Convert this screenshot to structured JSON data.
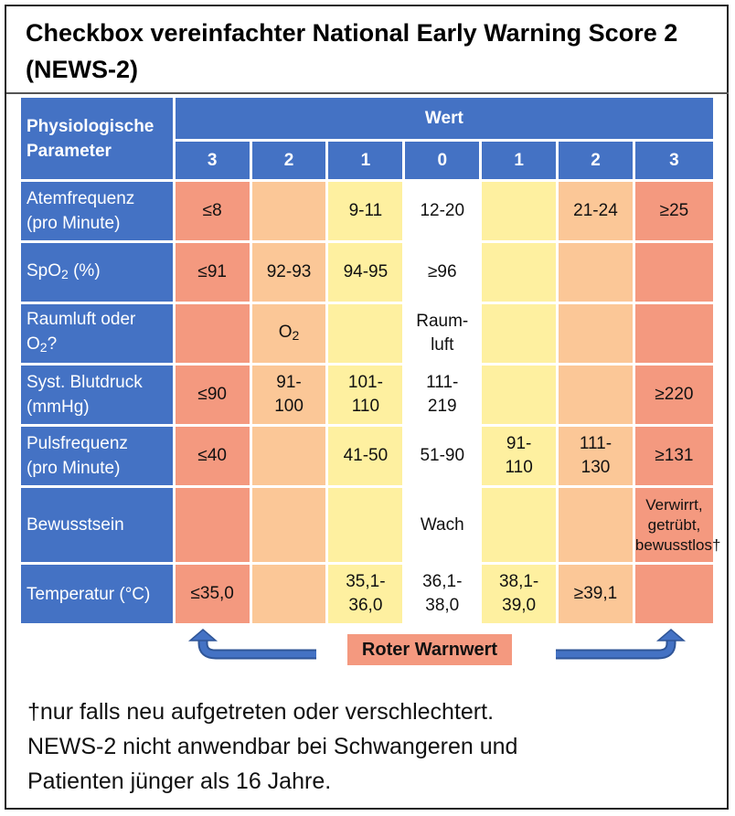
{
  "title": {
    "line1": "Checkbox vereinfachter National Early Warning Score 2",
    "line2": "(NEWS-2)"
  },
  "table": {
    "header_param": [
      "Physiologische",
      "Parameter"
    ],
    "header_value": "Wert",
    "scores": [
      "3",
      "2",
      "1",
      "0",
      "1",
      "2",
      "3"
    ],
    "rows": [
      {
        "param": [
          "Atemfrequenz",
          "(pro Minute)"
        ],
        "cells": [
          [
            "≤8"
          ],
          [],
          [
            "9-11"
          ],
          [
            "12-20"
          ],
          [],
          [
            "21-24"
          ],
          [
            "≥25"
          ]
        ]
      },
      {
        "param_main": "SpO",
        "param_sub": "2",
        "param_tail": " (%)",
        "cells": [
          [
            "≤91"
          ],
          [
            "92-93"
          ],
          [
            "94-95"
          ],
          [
            "≥96"
          ],
          [],
          [],
          []
        ]
      },
      {
        "param_line1": "Raumluft oder",
        "param_line2_main": "O",
        "param_line2_sub": "2",
        "param_line2_tail": "?",
        "cells": [
          [],
          [],
          [],
          [
            "Raum-",
            "luft"
          ],
          [],
          [],
          []
        ],
        "o2_main": "O",
        "o2_sub": "2"
      },
      {
        "param": [
          "Syst. Blutdruck",
          "(mmHg)"
        ],
        "cells": [
          [
            "≤90"
          ],
          [
            "91-",
            "100"
          ],
          [
            "101-",
            "110"
          ],
          [
            "111-",
            "219"
          ],
          [],
          [],
          [
            "≥220"
          ]
        ]
      },
      {
        "param": [
          "Pulsfrequenz",
          "(pro Minute)"
        ],
        "cells": [
          [
            "≤40"
          ],
          [],
          [
            "41-50"
          ],
          [
            "51-90"
          ],
          [
            "91-",
            "110"
          ],
          [
            "111-",
            "130"
          ],
          [
            "≥131"
          ]
        ]
      },
      {
        "param": [
          "Bewusstsein"
        ],
        "cells": [
          [],
          [],
          [],
          [
            "Wach"
          ],
          [],
          [],
          [
            "Verwirrt,",
            "getrübt,",
            "bewusstlos†"
          ]
        ]
      },
      {
        "param": [
          "Temperatur (°C)"
        ],
        "cells": [
          [
            "≤35,0"
          ],
          [],
          [
            "35,1-",
            "36,0"
          ],
          [
            "36,1-",
            "38,0"
          ],
          [
            "38,1-",
            "39,0"
          ],
          [
            "≥39,1"
          ],
          []
        ]
      }
    ]
  },
  "legend": {
    "label": "Roter Warnwert"
  },
  "footnote": {
    "line1": "†nur falls neu aufgetreten oder verschlechtert.",
    "line2": "NEWS-2 nicht anwendbar bei Schwangeren und",
    "line3": "Patienten jünger als 16 Jahre."
  },
  "colors": {
    "header_blue": "#4472c4",
    "score3_red": "#f4997f",
    "score2_orange": "#fbc797",
    "score1_yellow": "#fef0a0",
    "score0_white": "#ffffff"
  }
}
